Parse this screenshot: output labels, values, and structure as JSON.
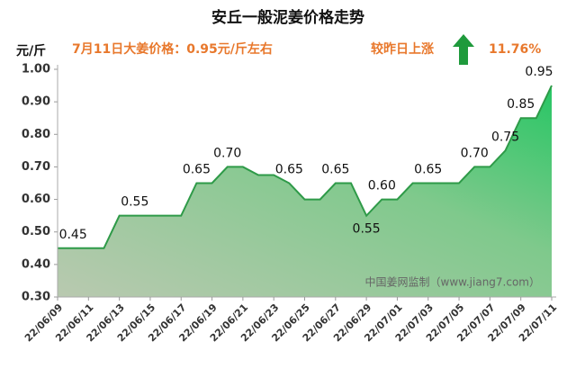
{
  "chart_data": {
    "type": "area",
    "title": "安丘一般泥姜价格走势",
    "y_unit": "元/斤",
    "subtitle": "7月11日大姜价格：0.95元/斤左右",
    "change_text": "较昨日上涨",
    "change_value": "11.76%",
    "watermark": "中国姜网监制（www.jiang7.com）",
    "categories": [
      "22/06/09",
      null,
      "22/06/11",
      null,
      "22/06/13",
      null,
      "22/06/15",
      null,
      "22/06/17",
      null,
      "22/06/19",
      null,
      "22/06/21",
      null,
      "22/06/23",
      null,
      "22/06/25",
      null,
      "22/06/27",
      null,
      "22/06/29",
      null,
      "22/07/01",
      null,
      "22/07/03",
      null,
      "22/07/05",
      null,
      "22/07/07",
      null,
      "22/07/09",
      null,
      "22/07/11"
    ],
    "values": [
      0.45,
      0.45,
      0.45,
      0.45,
      0.55,
      0.55,
      0.55,
      0.55,
      0.55,
      0.65,
      0.65,
      0.7,
      0.7,
      0.675,
      0.675,
      0.65,
      0.6,
      0.6,
      0.65,
      0.65,
      0.55,
      0.6,
      0.6,
      0.65,
      0.65,
      0.65,
      0.65,
      0.7,
      0.7,
      0.75,
      0.85,
      0.85,
      0.95
    ],
    "value_labels": [
      null,
      "0.45",
      null,
      null,
      null,
      "0.55",
      null,
      null,
      null,
      "0.65",
      null,
      "0.70",
      null,
      null,
      null,
      "0.65",
      null,
      null,
      "0.65",
      null,
      "0.55",
      "0.60",
      null,
      null,
      "0.65",
      null,
      null,
      "0.70",
      null,
      "0.75",
      "0.85",
      null,
      "0.95"
    ],
    "color": "#2e9a48",
    "ylim": [
      0.3,
      1.0
    ],
    "yticks": [
      {
        "value": 0.3,
        "label": "0.30"
      },
      {
        "value": 0.4,
        "label": "0.40"
      },
      {
        "value": 0.5,
        "label": "0.50"
      },
      {
        "value": 0.6,
        "label": "0.60"
      },
      {
        "value": 0.7,
        "label": "0.70"
      },
      {
        "value": 0.8,
        "label": "0.80"
      },
      {
        "value": 0.9,
        "label": "0.90"
      },
      {
        "value": 1.0,
        "label": "1.00"
      }
    ],
    "grid": false
  }
}
